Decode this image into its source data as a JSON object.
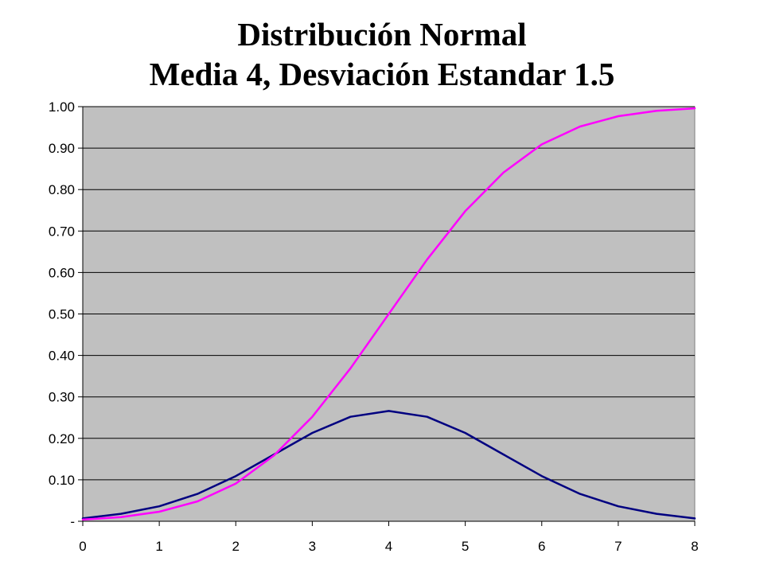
{
  "title_line1": "Distribución Normal",
  "title_line2": "Media 4, Desviación Estandar 1.5",
  "colors": {
    "plot_background": "#C0C0C0",
    "gridline": "#000000",
    "pdf_series": "#000080",
    "cdf_series": "#FF00FF"
  },
  "chart_data": {
    "type": "line",
    "title": "Distribución Normal Media 4, Desviación Estandar 1.5",
    "xlabel": "",
    "ylabel": "",
    "xlim": [
      0,
      8
    ],
    "ylim": [
      0,
      1
    ],
    "x_ticks": [
      "0",
      "1",
      "2",
      "3",
      "4",
      "5",
      "6",
      "7",
      "8"
    ],
    "y_ticks": [
      "-",
      "0.10",
      "0.20",
      "0.30",
      "0.40",
      "0.50",
      "0.60",
      "0.70",
      "0.80",
      "0.90",
      "1.00"
    ],
    "grid": "horizontal",
    "legend": "none",
    "x": [
      0,
      0.5,
      1,
      1.5,
      2,
      2.5,
      3,
      3.5,
      4,
      4.5,
      5,
      5.5,
      6,
      6.5,
      7,
      7.5,
      8
    ],
    "series": [
      {
        "color": "#000080",
        "values": [
          0.007,
          0.018,
          0.036,
          0.066,
          0.109,
          0.161,
          0.213,
          0.252,
          0.266,
          0.252,
          0.213,
          0.161,
          0.109,
          0.066,
          0.036,
          0.018,
          0.007
        ]
      },
      {
        "color": "#FF00FF",
        "values": [
          0.004,
          0.01,
          0.023,
          0.048,
          0.091,
          0.159,
          0.252,
          0.369,
          0.5,
          0.631,
          0.748,
          0.841,
          0.909,
          0.952,
          0.977,
          0.99,
          0.996
        ]
      }
    ]
  }
}
